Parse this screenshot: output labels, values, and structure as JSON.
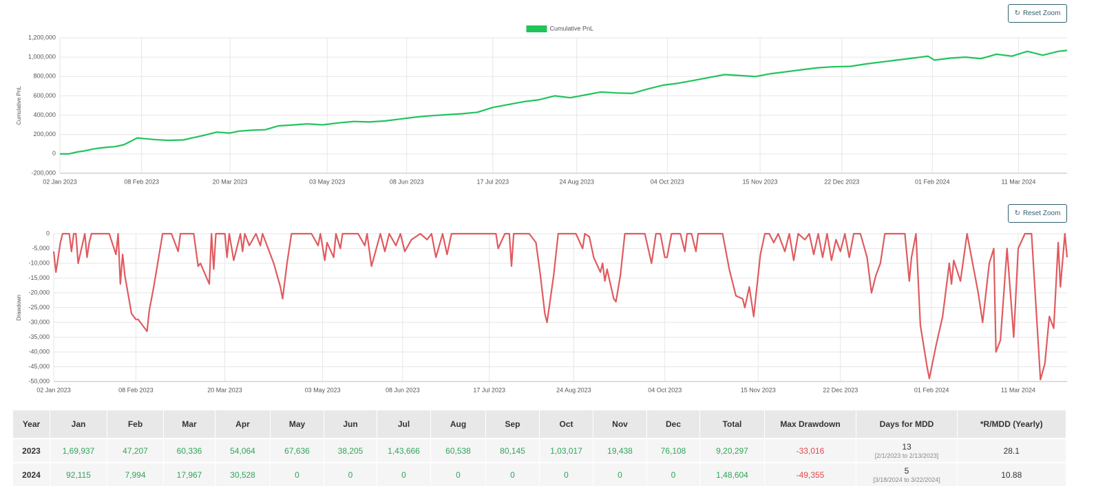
{
  "chart_data": [
    {
      "type": "line",
      "ylabel": "Cumulative PnL",
      "legend": "top",
      "x": [
        "2023-01-02",
        "2023-01-06",
        "2023-01-10",
        "2023-01-13",
        "2023-01-17",
        "2023-01-20",
        "2023-01-24",
        "2023-01-27",
        "2023-01-31",
        "2023-02-03",
        "2023-02-06",
        "2023-02-08",
        "2023-02-13",
        "2023-02-20",
        "2023-02-27",
        "2023-03-03",
        "2023-03-08",
        "2023-03-14",
        "2023-03-20",
        "2023-03-24",
        "2023-03-30",
        "2023-04-05",
        "2023-04-11",
        "2023-04-18",
        "2023-04-24",
        "2023-05-01",
        "2023-05-08",
        "2023-05-15",
        "2023-05-22",
        "2023-05-29",
        "2023-06-05",
        "2023-06-12",
        "2023-06-19",
        "2023-06-26",
        "2023-07-03",
        "2023-07-10",
        "2023-07-17",
        "2023-07-24",
        "2023-07-31",
        "2023-08-07",
        "2023-08-14",
        "2023-08-21",
        "2023-08-28",
        "2023-09-04",
        "2023-09-11",
        "2023-09-18",
        "2023-09-25",
        "2023-10-02",
        "2023-10-09",
        "2023-10-16",
        "2023-10-23",
        "2023-10-30",
        "2023-11-06",
        "2023-11-13",
        "2023-11-20",
        "2023-11-27",
        "2023-12-04",
        "2023-12-11",
        "2023-12-18",
        "2023-12-26",
        "2024-01-02",
        "2024-01-09",
        "2024-01-16",
        "2024-01-23",
        "2024-01-30",
        "2024-02-02",
        "2024-02-09",
        "2024-02-16",
        "2024-02-23",
        "2024-03-01",
        "2024-03-08",
        "2024-03-15",
        "2024-03-22",
        "2024-03-29",
        "2024-04-02"
      ],
      "series": [
        {
          "name": "Cumulative PnL",
          "color": "#1fc45a",
          "values": [
            0,
            0,
            20000,
            30000,
            50000,
            60000,
            70000,
            75000,
            95000,
            130000,
            165000,
            160000,
            150000,
            140000,
            145000,
            165000,
            190000,
            225000,
            215000,
            235000,
            245000,
            250000,
            290000,
            300000,
            310000,
            300000,
            320000,
            335000,
            330000,
            340000,
            360000,
            380000,
            395000,
            405000,
            415000,
            430000,
            480000,
            510000,
            540000,
            560000,
            600000,
            580000,
            610000,
            640000,
            630000,
            625000,
            670000,
            710000,
            730000,
            760000,
            790000,
            820000,
            810000,
            800000,
            830000,
            850000,
            870000,
            890000,
            900000,
            905000,
            930000,
            950000,
            970000,
            990000,
            1010000,
            970000,
            990000,
            1000000,
            985000,
            1030000,
            1010000,
            1060000,
            1020000,
            1060000,
            1068901
          ]
        }
      ],
      "xlim": [
        "2023-01-02",
        "2024-04-02"
      ],
      "xticks": [
        {
          "value": "2023-01-02",
          "label": "02 Jan 2023"
        },
        {
          "value": "2023-02-08",
          "label": "08 Feb 2023"
        },
        {
          "value": "2023-03-20",
          "label": "20 Mar 2023"
        },
        {
          "value": "2023-05-03",
          "label": "03 May 2023"
        },
        {
          "value": "2023-06-08",
          "label": "08 Jun 2023"
        },
        {
          "value": "2023-07-17",
          "label": "17 Jul 2023"
        },
        {
          "value": "2023-08-24",
          "label": "24 Aug 2023"
        },
        {
          "value": "2023-10-04",
          "label": "04 Oct 2023"
        },
        {
          "value": "2023-11-15",
          "label": "15 Nov 2023"
        },
        {
          "value": "2023-12-22",
          "label": "22 Dec 2023"
        },
        {
          "value": "2024-02-01",
          "label": "01 Feb 2024"
        },
        {
          "value": "2024-03-11",
          "label": "11 Mar 2024"
        }
      ],
      "ylim": [
        -200000,
        1200000
      ],
      "yticks": [
        {
          "value": -200000,
          "label": "-200,000"
        },
        0,
        {
          "value": 200000,
          "label": "200,000"
        },
        {
          "value": 400000,
          "label": "400,000"
        },
        {
          "value": 600000,
          "label": "600,000"
        },
        {
          "value": 800000,
          "label": "800,000"
        },
        {
          "value": 1000000,
          "label": "1,000,000"
        },
        {
          "value": 1200000,
          "label": "1,200,000"
        }
      ],
      "grid": true
    },
    {
      "type": "line",
      "ylabel": "Drawdown",
      "color": "#e05a5e",
      "x": [
        "2023-01-02",
        "2023-01-03",
        "2023-01-05",
        "2023-01-06",
        "2023-01-09",
        "2023-01-10",
        "2023-01-11",
        "2023-01-12",
        "2023-01-13",
        "2023-01-16",
        "2023-01-17",
        "2023-01-18",
        "2023-01-19",
        "2023-01-24",
        "2023-01-27",
        "2023-01-30",
        "2023-01-31",
        "2023-02-01",
        "2023-02-02",
        "2023-02-03",
        "2023-02-06",
        "2023-02-08",
        "2023-02-09",
        "2023-02-13",
        "2023-02-14",
        "2023-02-16",
        "2023-02-20",
        "2023-02-24",
        "2023-02-27",
        "2023-02-28",
        "2023-03-06",
        "2023-03-08",
        "2023-03-09",
        "2023-03-13",
        "2023-03-14",
        "2023-03-15",
        "2023-03-16",
        "2023-03-20",
        "2023-03-21",
        "2023-03-22",
        "2023-03-24",
        "2023-03-27",
        "2023-03-28",
        "2023-03-29",
        "2023-03-31",
        "2023-04-03",
        "2023-04-05",
        "2023-04-06",
        "2023-04-11",
        "2023-04-14",
        "2023-04-15",
        "2023-04-17",
        "2023-04-19",
        "2023-04-28",
        "2023-05-01",
        "2023-05-02",
        "2023-05-04",
        "2023-05-05",
        "2023-05-08",
        "2023-05-09",
        "2023-05-11",
        "2023-05-12",
        "2023-05-19",
        "2023-05-22",
        "2023-05-23",
        "2023-05-25",
        "2023-05-29",
        "2023-05-31",
        "2023-06-02",
        "2023-06-05",
        "2023-06-07",
        "2023-06-09",
        "2023-06-12",
        "2023-06-16",
        "2023-06-19",
        "2023-06-21",
        "2023-06-23",
        "2023-06-26",
        "2023-06-28",
        "2023-06-30",
        "2023-07-20",
        "2023-07-21",
        "2023-07-24",
        "2023-07-26",
        "2023-07-27",
        "2023-07-28",
        "2023-08-04",
        "2023-08-07",
        "2023-08-09",
        "2023-08-11",
        "2023-08-12",
        "2023-08-15",
        "2023-08-17",
        "2023-08-25",
        "2023-08-28",
        "2023-08-29",
        "2023-08-31",
        "2023-09-02",
        "2023-09-05",
        "2023-09-06",
        "2023-09-07",
        "2023-09-08",
        "2023-09-11",
        "2023-09-12",
        "2023-09-14",
        "2023-09-16",
        "2023-09-25",
        "2023-09-28",
        "2023-09-30",
        "2023-10-02",
        "2023-10-04",
        "2023-10-05",
        "2023-10-07",
        "2023-10-11",
        "2023-10-13",
        "2023-10-14",
        "2023-10-16",
        "2023-10-18",
        "2023-10-19",
        "2023-10-30",
        "2023-11-02",
        "2023-11-05",
        "2023-11-08",
        "2023-11-09",
        "2023-11-11",
        "2023-11-13",
        "2023-11-16",
        "2023-11-18",
        "2023-11-20",
        "2023-11-22",
        "2023-11-24",
        "2023-11-27",
        "2023-11-29",
        "2023-12-01",
        "2023-12-03",
        "2023-12-06",
        "2023-12-08",
        "2023-12-10",
        "2023-12-12",
        "2023-12-14",
        "2023-12-16",
        "2023-12-18",
        "2023-12-20",
        "2023-12-22",
        "2023-12-24",
        "2023-12-26",
        "2023-12-28",
        "2023-12-31",
        "2024-01-03",
        "2024-01-05",
        "2024-01-07",
        "2024-01-09",
        "2024-01-11",
        "2024-01-20",
        "2024-01-22",
        "2024-01-23",
        "2024-01-25",
        "2024-01-27",
        "2024-01-30",
        "2024-01-31",
        "2024-02-03",
        "2024-02-06",
        "2024-02-09",
        "2024-02-10",
        "2024-02-11",
        "2024-02-14",
        "2024-02-17",
        "2024-02-22",
        "2024-02-24",
        "2024-02-27",
        "2024-02-29",
        "2024-03-01",
        "2024-03-03",
        "2024-03-06",
        "2024-03-09",
        "2024-03-11",
        "2024-03-14",
        "2024-03-17",
        "2024-03-21",
        "2024-03-23",
        "2024-03-25",
        "2024-03-27",
        "2024-03-29",
        "2024-03-30",
        "2024-04-01",
        "2024-04-02"
      ],
      "values": [
        -6000,
        -13000,
        -3000,
        0,
        0,
        -6000,
        0,
        0,
        -10000,
        0,
        -8000,
        -3000,
        0,
        0,
        0,
        -7000,
        0,
        -17000,
        -7000,
        -14000,
        -27000,
        -29000,
        -29000,
        -33016,
        -26000,
        -18000,
        0,
        0,
        -6000,
        0,
        0,
        -11000,
        -10000,
        -17000,
        0,
        -12000,
        0,
        0,
        -8000,
        0,
        -9000,
        0,
        -6000,
        0,
        -4000,
        0,
        -4000,
        0,
        -10000,
        -18000,
        -22000,
        -10000,
        0,
        0,
        -4000,
        0,
        -9000,
        -3000,
        -8000,
        0,
        -5000,
        0,
        0,
        -4000,
        0,
        -11000,
        0,
        -6000,
        0,
        -4000,
        0,
        -6000,
        -2000,
        0,
        -2000,
        0,
        -8000,
        0,
        -7000,
        0,
        0,
        -5000,
        0,
        0,
        -11000,
        0,
        0,
        -3000,
        -14000,
        -27000,
        -30000,
        -14000,
        0,
        0,
        -5000,
        0,
        -1000,
        -8000,
        -13000,
        -10000,
        -16000,
        -12000,
        -22000,
        -23000,
        -14000,
        0,
        0,
        -10000,
        0,
        0,
        -8000,
        -8000,
        0,
        0,
        -6000,
        0,
        0,
        -6000,
        0,
        0,
        -12000,
        -21000,
        -22000,
        -25000,
        -18000,
        -28000,
        -7000,
        0,
        0,
        -3000,
        0,
        -6000,
        0,
        -9000,
        0,
        -2000,
        0,
        -7000,
        0,
        -8000,
        0,
        -9000,
        -2000,
        -6000,
        0,
        -8000,
        0,
        0,
        -8000,
        -20000,
        -14000,
        -10000,
        0,
        0,
        -16000,
        -8000,
        0,
        -31000,
        -45000,
        -49000,
        -38000,
        -28000,
        -10000,
        -17000,
        -9000,
        -16000,
        0,
        -20000,
        -30000,
        -10000,
        -5000,
        -40000,
        -36000,
        -5000,
        -35000,
        -5000,
        0,
        0,
        -49355,
        -44000,
        -28000,
        -32000,
        -3000,
        -18000,
        0,
        -8000
      ],
      "xlim": [
        "2023-01-02",
        "2024-04-02"
      ],
      "xticks": [
        {
          "value": "2023-01-02",
          "label": "02 Jan 2023"
        },
        {
          "value": "2023-02-08",
          "label": "08 Feb 2023"
        },
        {
          "value": "2023-03-20",
          "label": "20 Mar 2023"
        },
        {
          "value": "2023-05-03",
          "label": "03 May 2023"
        },
        {
          "value": "2023-06-08",
          "label": "08 Jun 2023"
        },
        {
          "value": "2023-07-17",
          "label": "17 Jul 2023"
        },
        {
          "value": "2023-08-24",
          "label": "24 Aug 2023"
        },
        {
          "value": "2023-10-04",
          "label": "04 Oct 2023"
        },
        {
          "value": "2023-11-15",
          "label": "15 Nov 2023"
        },
        {
          "value": "2023-12-22",
          "label": "22 Dec 2023"
        },
        {
          "value": "2024-02-01",
          "label": "01 Feb 2024"
        },
        {
          "value": "2024-03-11",
          "label": "11 Mar 2024"
        }
      ],
      "ylim": [
        -50000,
        0
      ],
      "yticks": [
        {
          "value": -50000,
          "label": "-50,000"
        },
        {
          "value": -45000,
          "label": "-45,000"
        },
        {
          "value": -40000,
          "label": "-40,000"
        },
        {
          "value": -35000,
          "label": "-35,000"
        },
        {
          "value": -30000,
          "label": "-30,000"
        },
        {
          "value": -25000,
          "label": "-25,000"
        },
        {
          "value": -20000,
          "label": "-20,000"
        },
        {
          "value": -15000,
          "label": "-15,000"
        },
        {
          "value": -10000,
          "label": "-10,000"
        },
        {
          "value": -5000,
          "label": "-5,000"
        },
        0
      ],
      "grid": true
    }
  ],
  "buttons": [
    "Reset Zoom",
    "Reset Zoom"
  ],
  "table": {
    "header": [
      "Year",
      "Jan",
      "Feb",
      "Mar",
      "Apr",
      "May",
      "Jun",
      "Jul",
      "Aug",
      "Sep",
      "Oct",
      "Nov",
      "Dec",
      "Total",
      "Max Drawdown",
      "Days for MDD",
      "*R/MDD (Yearly)"
    ],
    "rows": [
      [
        "2023",
        "1,69,937",
        "47,207",
        "60,336",
        "54,064",
        "67,636",
        "38,205",
        "1,43,666",
        "60,538",
        "80,145",
        "1,03,017",
        "19,438",
        "76,108",
        "9,20,297",
        "-33,016",
        {
          "days": "13",
          "range": "[2/1/2023 to 2/13/2023]"
        },
        "28.1"
      ],
      [
        "2024",
        "92,115",
        "7,994",
        "17,967",
        "30,528",
        "0",
        "0",
        "0",
        "0",
        "0",
        "0",
        "0",
        "0",
        "1,48,604",
        "-49,355",
        {
          "days": "5",
          "range": "[3/18/2024 to 3/22/2024]"
        },
        "10.88"
      ]
    ]
  }
}
